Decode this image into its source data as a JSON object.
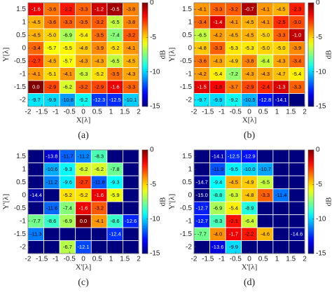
{
  "chart_data": [
    {
      "type": "heatmap",
      "caption": "(a)",
      "xlabel": "X[λ]",
      "ylabel": "Y[λ]",
      "colorbar_label": "dB",
      "xlim": [
        -2,
        2
      ],
      "xticks": [
        -2,
        -1.5,
        -1,
        -0.5,
        0,
        0.5,
        1,
        1.5,
        2
      ],
      "ylim": [
        -2.25,
        1.75
      ],
      "yticks": [
        1.5,
        1,
        0.5,
        0,
        -0.5,
        -1,
        -1.5,
        -2
      ],
      "clim": [
        -15,
        0
      ],
      "cticks": [
        0,
        -5,
        -10,
        -15
      ],
      "values": [
        [
          -1.6,
          -3.6,
          -2.2,
          -3.3,
          -1.2,
          -0.5,
          -3.8
        ],
        [
          -4.5,
          -3.6,
          -3.3,
          -3.5,
          -3.2,
          -6.5,
          -3.8
        ],
        [
          -4.5,
          -5.0,
          -6.9,
          -5.4,
          -3.5,
          -7.4,
          -3.2
        ],
        [
          -3.4,
          -5.7,
          -5.5,
          -4.8,
          -3.9,
          -5.2,
          -4.1
        ],
        [
          -2.7,
          -4.5,
          -5.7,
          -4.3,
          -4.3,
          -6.5,
          -4.5
        ],
        [
          -4.1,
          -5.1,
          -4.1,
          -6.3,
          -5.2,
          -3.5,
          -4.3
        ],
        [
          0,
          -2.9,
          -6.2,
          -3.2,
          -2.9,
          -1.6,
          -3.3
        ],
        [
          -9.7,
          -9.9,
          -10.8,
          -9.2,
          -12.3,
          -12.5,
          -10.1
        ]
      ],
      "value_labels": [
        [
          "-1.6",
          "-3.6",
          "-2.2",
          "-3.3",
          "-1.2",
          "-0.5",
          "-3.8"
        ],
        [
          "-4.5",
          "-3.6",
          "-3.3",
          "-3.5",
          "-3.2",
          "-6.5",
          "-3.8"
        ],
        [
          "-4.5",
          "-5.0",
          "-6.9",
          "-5.4",
          "-3.5",
          "-7.4",
          "-3.2"
        ],
        [
          "-3.4",
          "-5.7",
          "-5.5",
          "-4.8",
          "-3.9",
          "-5.2",
          "-4.1"
        ],
        [
          "-2.7",
          "-4.5",
          "-5.7",
          "-4.3",
          "-4.3",
          "-6.5",
          "-4.5"
        ],
        [
          "-4.1",
          "-5.1",
          "-4.1",
          "-6.3",
          "-5.2",
          "-3.5",
          "-4.3"
        ],
        [
          "0.0",
          "-2.9",
          "-6.2",
          "-3.2",
          "-2.9",
          "-1.6",
          "-3.3"
        ],
        [
          "-9.7",
          "-9.9",
          "-10.8",
          "-9.2",
          "-12.3",
          "-12.5",
          "-10.1"
        ]
      ]
    },
    {
      "type": "heatmap",
      "caption": "(b)",
      "xlabel": "X[λ]",
      "ylabel": "Y[λ]",
      "colorbar_label": "dB",
      "xlim": [
        -2,
        2
      ],
      "xticks": [
        -2,
        -1.5,
        -1,
        -0.5,
        0,
        0.5,
        1,
        1.5,
        2
      ],
      "ylim": [
        -2.25,
        1.75
      ],
      "yticks": [
        1.5,
        1,
        0.5,
        0,
        -0.5,
        -1,
        -1.5,
        -2
      ],
      "clim": [
        -15,
        0
      ],
      "cticks": [
        0,
        -5,
        -10,
        -15
      ],
      "values": [
        [
          -4.1,
          -3.3,
          -3.2,
          -0.7,
          -4.1,
          -4.5,
          -2.3
        ],
        [
          -3.4,
          -1.4,
          -4.1,
          -4.5,
          -4.1,
          -2.5,
          -3.0
        ],
        [
          -6.5,
          -4.2,
          -4.5,
          -4.5,
          -5.0,
          -3.3,
          -1.0
        ],
        [
          -4.8,
          -3.3,
          -5.3,
          -5.3,
          -5.0,
          -5.0,
          -3.9
        ],
        [
          -3.6,
          -4.3,
          -4.9,
          -3.8,
          -6.4,
          -4.3,
          -3.4
        ],
        [
          -4.2,
          -5.4,
          -7.2,
          -4.3,
          -4.3,
          -4.7,
          -5.4
        ],
        [
          -1.5,
          -1.8,
          -3.7,
          -2.9,
          -2.4,
          -1.3,
          -3.3
        ],
        [
          -9.7,
          -9.9,
          -9.2,
          -10.5,
          -12.8,
          -14.1,
          null
        ]
      ],
      "value_labels": [
        [
          "-4.1",
          "-3.3",
          "-3.2",
          "-0.7",
          "-4.1",
          "-4.5",
          "-2.3"
        ],
        [
          "-3.4",
          "-1.4",
          "-4.1",
          "-4.5",
          "-4.1",
          "-2.5",
          "-3.0"
        ],
        [
          "-6.5",
          "-4.2",
          "-4.5",
          "-4.5",
          "-5.0",
          "-3.3",
          "-1.0"
        ],
        [
          "-4.8",
          "-3.3",
          "-5.3",
          "-5.3",
          "-5.0",
          "-5.0",
          "-3.9"
        ],
        [
          "-3.6",
          "-4.3",
          "-4.9",
          "-3.8",
          "-6.4",
          "-4.3",
          "-3.4"
        ],
        [
          "-4.2",
          "-5.4",
          "-7.2",
          "-4.3",
          "-4.3",
          "-4.7",
          "-5.4"
        ],
        [
          "-1.5",
          "-1.8",
          "-3.7",
          "-2.9",
          "-2.4",
          "-1.3",
          "-3.3"
        ],
        [
          "-9.7",
          "-9.9",
          "-9.2",
          "-10.5",
          "-12.8",
          "-14.1",
          null
        ]
      ]
    },
    {
      "type": "heatmap",
      "caption": "(c)",
      "xlabel": "X'[λ]",
      "ylabel": "Y'[λ]",
      "colorbar_label": "dB",
      "xlim": [
        -2,
        2
      ],
      "xticks": [
        -2,
        -1.5,
        -1,
        -0.5,
        0,
        0.5,
        1,
        1.5,
        2
      ],
      "ylim": [
        -2.25,
        1.75
      ],
      "yticks": [
        1.5,
        1,
        0.5,
        0,
        -0.5,
        -1,
        -1.5,
        -2
      ],
      "clim": [
        -15,
        0
      ],
      "cticks": [
        0,
        -5,
        -10,
        -15
      ],
      "values": [
        [
          null,
          -13.8,
          -11.7,
          -11.2,
          -8.3,
          null,
          null
        ],
        [
          null,
          -10.6,
          -9.3,
          -6.2,
          -6.2,
          -7.8,
          null
        ],
        [
          null,
          -11.2,
          -9.6,
          -2.7,
          -11.8,
          -9.3,
          null
        ],
        [
          -14.4,
          null,
          -5.2,
          -5.2,
          -1.6,
          -5.9,
          null
        ],
        [
          null,
          -11.6,
          -7.4,
          -1.6,
          -3.2,
          null,
          null
        ],
        [
          -7.7,
          -8.6,
          -6.9,
          0,
          -4.1,
          -8.6,
          -12.6
        ],
        [
          -11.3,
          null,
          null,
          null,
          null,
          -12.4,
          null
        ],
        [
          null,
          null,
          -6.7,
          -12.1,
          null,
          null,
          null
        ]
      ],
      "value_labels": [
        [
          null,
          "-13.8",
          "-11.7",
          "-11.2",
          "-8.3",
          null,
          null
        ],
        [
          null,
          "-10.6",
          "-9.3",
          "-6.2",
          "-6.2",
          "-7.8",
          null
        ],
        [
          null,
          "-11.2",
          "-9.6",
          "-2.7",
          "-11.8",
          "-9.3",
          null
        ],
        [
          "-14.4",
          null,
          "-5.2",
          "-5.2",
          "-1.6",
          "-5.9",
          null
        ],
        [
          null,
          "-11.6",
          "-7.4",
          "-1.6",
          "-3.2",
          null,
          null
        ],
        [
          "-7.7",
          "-8.6",
          "-6.9",
          "0.0",
          "-4.1",
          "-8.6",
          "-12.6"
        ],
        [
          "-11.3",
          null,
          null,
          null,
          null,
          "-12.4",
          null
        ],
        [
          null,
          null,
          "-6.7",
          "-12.1",
          null,
          null,
          null
        ]
      ]
    },
    {
      "type": "heatmap",
      "caption": "(d)",
      "xlabel": "X'[λ]",
      "ylabel": "Y'[λ]",
      "colorbar_label": "dB",
      "xlim": [
        -2,
        2
      ],
      "xticks": [
        -2,
        -1.5,
        -1,
        -0.5,
        0,
        0.5,
        1,
        1.5,
        2
      ],
      "ylim": [
        -2.25,
        1.75
      ],
      "yticks": [
        1.5,
        1,
        0.5,
        0,
        -0.5,
        -1,
        -1.5,
        -2
      ],
      "clim": [
        -15,
        0
      ],
      "cticks": [
        0,
        -5,
        -10,
        -15
      ],
      "values": [
        [
          null,
          -14.1,
          -12.5,
          -12.9,
          null,
          null,
          null
        ],
        [
          null,
          -11.9,
          -9.5,
          -10.0,
          -10.7,
          null,
          null
        ],
        [
          -14.7,
          -9.4,
          -4.5,
          -4.9,
          -6.5,
          null,
          null
        ],
        [
          -15,
          -8.8,
          -6.3,
          -4.8,
          -3.3,
          -11.4,
          null
        ],
        [
          -12.7,
          -6.9,
          -5.4,
          -8.9,
          null,
          null,
          null
        ],
        [
          -12.7,
          -8.3,
          -2.1,
          -6.4,
          null,
          null,
          null
        ],
        [
          -7.7,
          -4.0,
          -1.7,
          -2.2,
          -4.6,
          null,
          -14.6
        ],
        [
          null,
          -13.6,
          -9.9,
          null,
          null,
          null,
          null
        ]
      ],
      "value_labels": [
        [
          null,
          "-14.1",
          "-12.5",
          "-12.9",
          null,
          null,
          null
        ],
        [
          null,
          "-11.9",
          "-9.5",
          "-10.0",
          "-10.7",
          null,
          null
        ],
        [
          "-14.7",
          "-9.4",
          "-4.5",
          "-4.9",
          "-6.5",
          null,
          null
        ],
        [
          "-15.0",
          "-8.8",
          "-6.3",
          "-4.8",
          "-3.3",
          "-11.4",
          null
        ],
        [
          "-12.7",
          "-6.9",
          "-5.4",
          "-8.9",
          null,
          null,
          null
        ],
        [
          "-12.7",
          "-8.3",
          "-2.1",
          "-6.4",
          null,
          null,
          null
        ],
        [
          "-7.7",
          "-4.0",
          "-1.7",
          "-2.2",
          "-4.6",
          null,
          "-14.6"
        ],
        [
          null,
          "-13.6",
          "-9.9",
          null,
          null,
          null,
          null
        ]
      ]
    }
  ]
}
